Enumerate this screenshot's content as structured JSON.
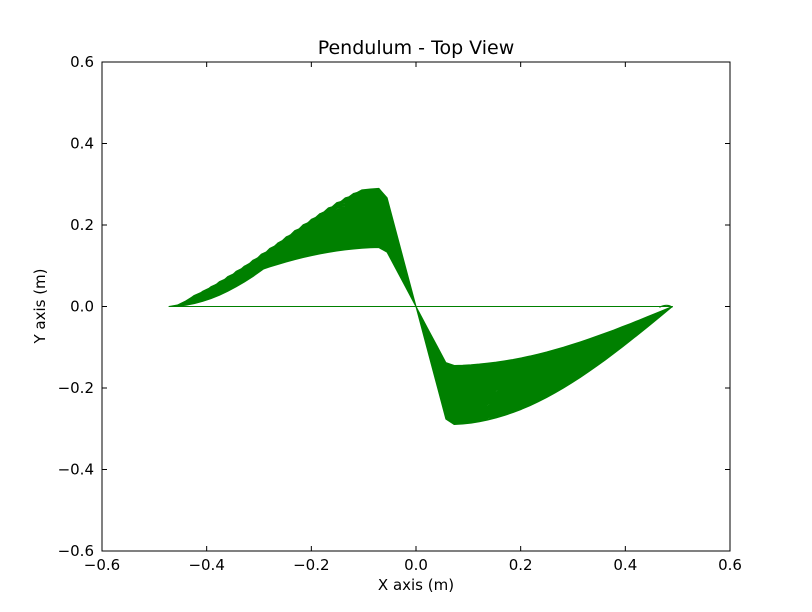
{
  "chart_data": {
    "type": "line",
    "title": "Pendulum - Top View",
    "xlabel": "X axis (m)",
    "ylabel": "Y axis (m)",
    "xlim": [
      -0.6,
      0.6
    ],
    "ylim": [
      -0.6,
      0.6
    ],
    "xticks": [
      -0.6,
      -0.4,
      -0.2,
      0.0,
      0.2,
      0.4,
      0.6
    ],
    "yticks": [
      -0.6,
      -0.4,
      -0.2,
      0.0,
      0.2,
      0.4,
      0.6
    ],
    "xtick_labels": [
      "−0.6",
      "−0.4",
      "−0.2",
      "0.0",
      "0.2",
      "0.4",
      "0.6"
    ],
    "ytick_labels": [
      "−0.6",
      "−0.4",
      "−0.2",
      "0.0",
      "0.2",
      "0.4",
      "0.6"
    ],
    "grid": false,
    "series": [
      {
        "color": "#008000",
        "x_range": [
          -0.475,
          0.49
        ],
        "y_range": [
          -0.29,
          0.29
        ]
      }
    ]
  }
}
